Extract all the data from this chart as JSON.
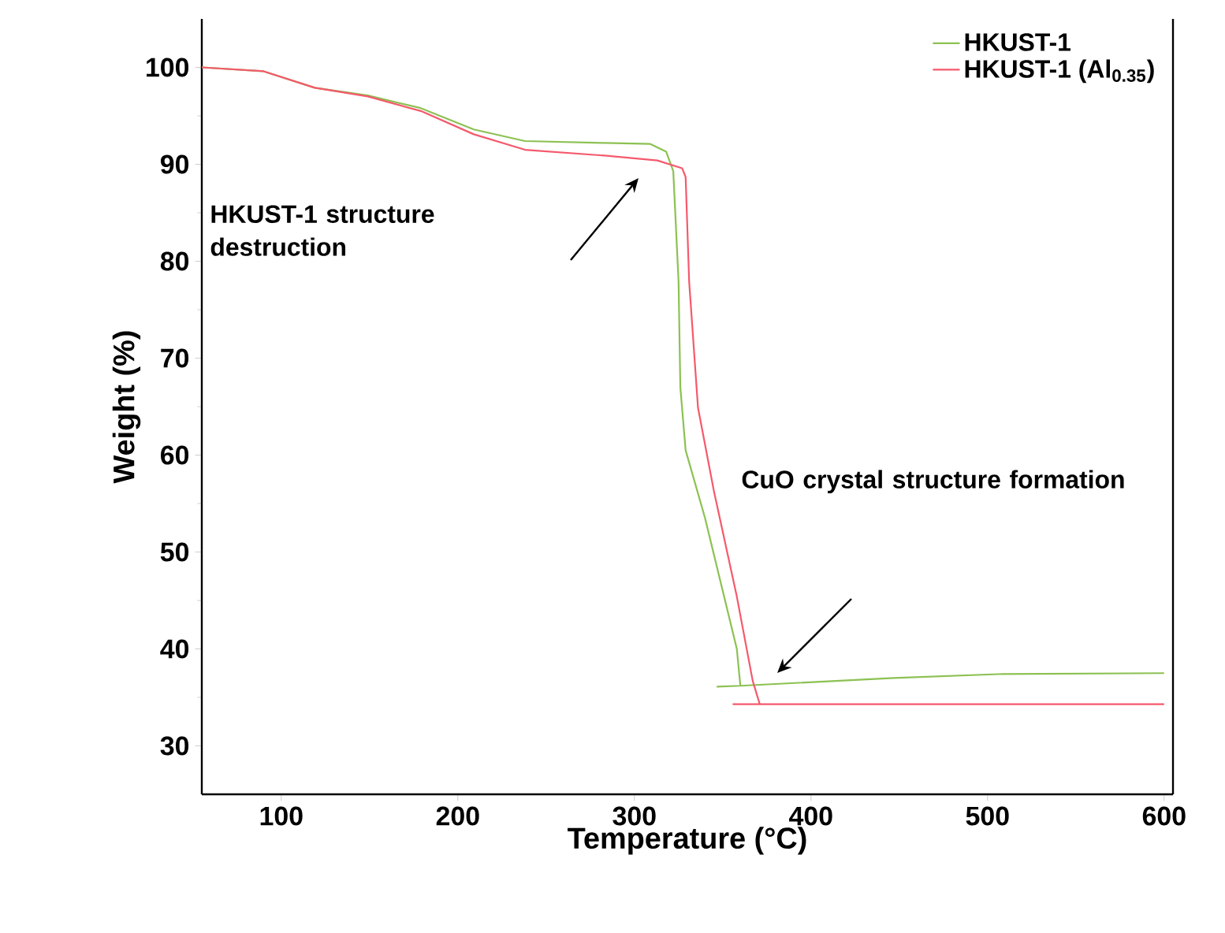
{
  "chart_data": {
    "type": "line",
    "xlabel": "Temperature (°C)",
    "ylabel": "Weight (%)",
    "xlim": [
      55,
      605
    ],
    "ylim": [
      25,
      105
    ],
    "xticks": [
      100,
      200,
      300,
      400,
      500,
      600
    ],
    "yticks": [
      30,
      40,
      50,
      60,
      70,
      80,
      90,
      100
    ],
    "legend": "top right",
    "line_style": "solid",
    "marker": "none",
    "grid": false,
    "series": [
      {
        "name": "HKUST-1",
        "color": "#8cc152",
        "x": [
          55,
          90,
          119,
          149,
          179,
          209,
          238,
          283,
          309,
          318,
          322,
          325,
          326,
          329,
          340,
          358,
          360,
          347,
          360,
          447,
          506,
          600
        ],
        "values": [
          100,
          99.6,
          97.9,
          97.1,
          95.8,
          93.6,
          92.4,
          92.2,
          92.1,
          91.3,
          89.3,
          77.9,
          67,
          60.5,
          53.5,
          40,
          36.2,
          36.1,
          36.2,
          37,
          37.4,
          37.5
        ]
      },
      {
        "name": "HKUST-1 (Al$_{0.35}$)",
        "color": "#f5596c",
        "x": [
          55,
          90,
          119,
          149,
          179,
          209,
          238,
          283,
          313,
          327,
          329,
          331,
          336,
          345,
          358,
          367,
          371,
          356,
          371,
          480,
          600
        ],
        "values": [
          100,
          99.6,
          97.9,
          97.0,
          95.5,
          93.1,
          91.5,
          90.9,
          90.4,
          89.6,
          88.7,
          77.9,
          64.9,
          56.3,
          45.4,
          36.7,
          34.3,
          34.3,
          34.3,
          34.3,
          34.3
        ]
      }
    ],
    "annotations": [
      "HKUST-1 structure destruction",
      "CuO crystal structure formation"
    ]
  }
}
